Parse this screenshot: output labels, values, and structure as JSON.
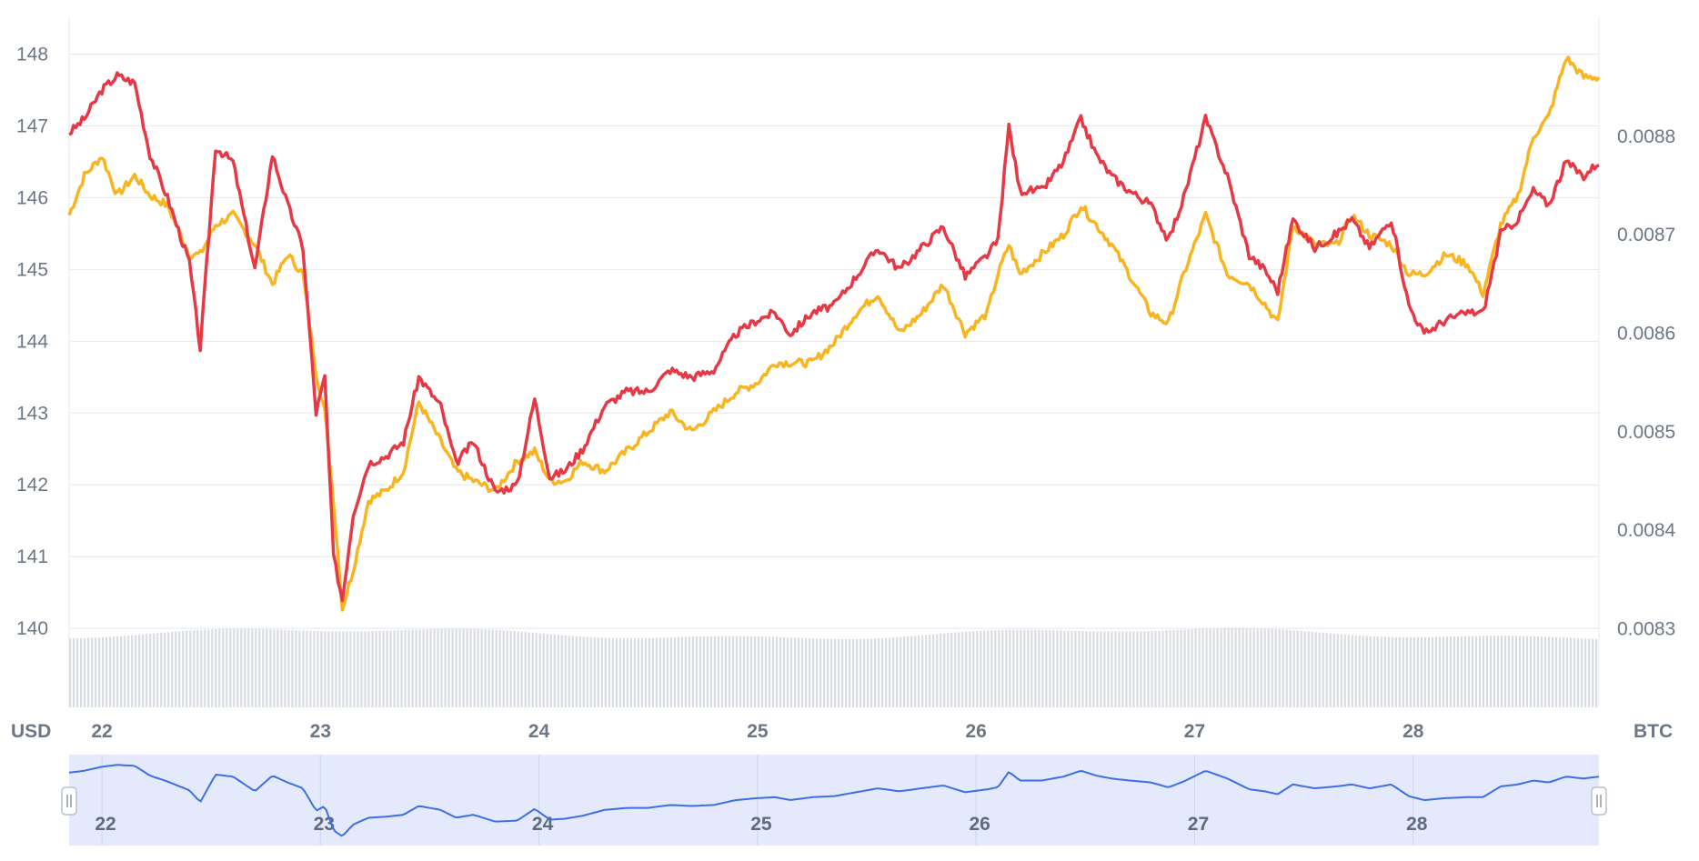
{
  "chart_data": {
    "type": "line",
    "x_unit": "day",
    "x_ticks": [
      "22",
      "23",
      "24",
      "25",
      "26",
      "27",
      "28"
    ],
    "xlim": [
      21.85,
      28.85
    ],
    "y_left": {
      "unit_label": "USD",
      "ticks": [
        "140",
        "141",
        "142",
        "143",
        "144",
        "145",
        "146",
        "147",
        "148"
      ],
      "range": [
        138.9,
        148.5
      ]
    },
    "y_right": {
      "unit_label": "BTC",
      "ticks": [
        "0.0083",
        "0.0084",
        "0.0085",
        "0.0086",
        "0.0087",
        "0.0088"
      ],
      "range": [
        0.00822,
        0.00892
      ]
    },
    "grid": true,
    "colors": {
      "usd": "#e63946",
      "btc": "#f9b521",
      "volume": "#d9dde3",
      "navigator_line": "#3d6fe0",
      "navigator_fill": "#e4eafc"
    },
    "series": [
      {
        "axis": "left",
        "x": [
          21.85,
          21.92,
          22.0,
          22.07,
          22.15,
          22.22,
          22.3,
          22.4,
          22.45,
          22.52,
          22.6,
          22.7,
          22.78,
          22.85,
          22.92,
          22.98,
          23.02,
          23.06,
          23.1,
          23.15,
          23.22,
          23.3,
          23.38,
          23.45,
          23.55,
          23.62,
          23.7,
          23.8,
          23.9,
          23.98,
          24.05,
          24.12,
          24.2,
          24.3,
          24.4,
          24.5,
          24.6,
          24.7,
          24.8,
          24.9,
          25.0,
          25.08,
          25.15,
          25.25,
          25.35,
          25.45,
          25.55,
          25.65,
          25.75,
          25.85,
          25.95,
          26.05,
          26.1,
          26.15,
          26.2,
          26.3,
          26.4,
          26.48,
          26.55,
          26.62,
          26.7,
          26.8,
          26.88,
          26.95,
          27.05,
          27.15,
          27.25,
          27.32,
          27.38,
          27.45,
          27.55,
          27.65,
          27.72,
          27.8,
          27.9,
          27.98,
          28.05,
          28.15,
          28.25,
          28.32,
          28.4,
          28.48,
          28.55,
          28.62,
          28.7,
          28.78,
          28.85
        ],
        "y": [
          146.9,
          147.1,
          147.5,
          147.7,
          147.6,
          146.6,
          146.0,
          145.1,
          143.9,
          146.7,
          146.5,
          145.0,
          146.6,
          145.9,
          145.3,
          143.0,
          143.5,
          141.0,
          140.4,
          141.6,
          142.3,
          142.4,
          142.6,
          143.5,
          143.1,
          142.3,
          142.6,
          141.9,
          142.0,
          143.2,
          142.1,
          142.2,
          142.5,
          143.1,
          143.3,
          143.3,
          143.6,
          143.5,
          143.6,
          144.1,
          144.3,
          144.4,
          144.1,
          144.4,
          144.5,
          144.9,
          145.3,
          145.0,
          145.3,
          145.6,
          144.9,
          145.2,
          145.4,
          147.0,
          146.1,
          146.1,
          146.5,
          147.1,
          146.6,
          146.3,
          146.1,
          145.9,
          145.4,
          146.0,
          147.1,
          146.3,
          145.2,
          145.0,
          144.7,
          145.7,
          145.3,
          145.5,
          145.7,
          145.3,
          145.7,
          144.5,
          144.1,
          144.3,
          144.4,
          144.4,
          145.5,
          145.7,
          146.1,
          145.9,
          146.5,
          146.3,
          146.5
        ]
      },
      {
        "axis": "right",
        "x": [
          21.85,
          21.92,
          22.0,
          22.07,
          22.15,
          22.22,
          22.3,
          22.4,
          22.45,
          22.52,
          22.6,
          22.7,
          22.78,
          22.85,
          22.92,
          22.98,
          23.02,
          23.06,
          23.1,
          23.15,
          23.22,
          23.3,
          23.38,
          23.45,
          23.55,
          23.62,
          23.7,
          23.8,
          23.9,
          23.98,
          24.05,
          24.12,
          24.2,
          24.3,
          24.4,
          24.5,
          24.6,
          24.7,
          24.8,
          24.9,
          25.0,
          25.08,
          25.15,
          25.25,
          25.35,
          25.45,
          25.55,
          25.65,
          25.75,
          25.85,
          25.95,
          26.05,
          26.1,
          26.15,
          26.2,
          26.3,
          26.4,
          26.48,
          26.55,
          26.62,
          26.7,
          26.8,
          26.88,
          26.95,
          27.05,
          27.15,
          27.25,
          27.32,
          27.38,
          27.45,
          27.55,
          27.65,
          27.72,
          27.8,
          27.9,
          27.98,
          28.05,
          28.15,
          28.25,
          28.32,
          28.4,
          28.48,
          28.55,
          28.62,
          28.7,
          28.78,
          28.85
        ],
        "y": [
          0.00872,
          0.00876,
          0.00878,
          0.00874,
          0.00876,
          0.00874,
          0.00873,
          0.00868,
          0.00868,
          0.00871,
          0.00872,
          0.00869,
          0.00865,
          0.00868,
          0.00866,
          0.00856,
          0.00852,
          0.00843,
          0.00832,
          0.00836,
          0.00843,
          0.00844,
          0.00846,
          0.00853,
          0.00849,
          0.00846,
          0.00845,
          0.00844,
          0.00847,
          0.00848,
          0.00845,
          0.00845,
          0.00847,
          0.00846,
          0.00848,
          0.0085,
          0.00852,
          0.0085,
          0.00852,
          0.00854,
          0.00855,
          0.00857,
          0.00857,
          0.00857,
          0.00859,
          0.00862,
          0.00864,
          0.0086,
          0.00862,
          0.00865,
          0.0086,
          0.00862,
          0.00866,
          0.00869,
          0.00866,
          0.00868,
          0.0087,
          0.00873,
          0.00871,
          0.00869,
          0.00866,
          0.00862,
          0.00861,
          0.00866,
          0.00872,
          0.00866,
          0.00865,
          0.00863,
          0.00861,
          0.00871,
          0.00869,
          0.00869,
          0.00872,
          0.0087,
          0.00869,
          0.00866,
          0.00866,
          0.00868,
          0.00867,
          0.00864,
          0.00871,
          0.00874,
          0.0088,
          0.00882,
          0.00888,
          0.00886,
          0.00886
        ]
      }
    ],
    "volume_bars": true,
    "navigator": true
  }
}
